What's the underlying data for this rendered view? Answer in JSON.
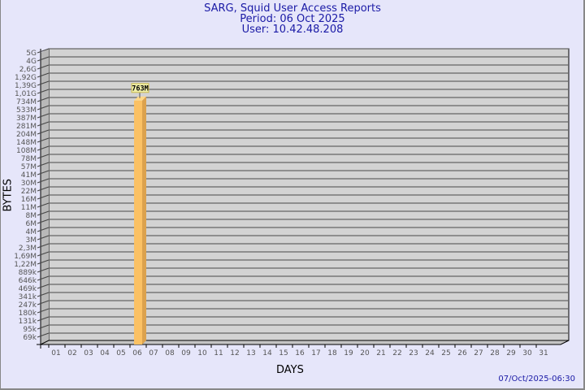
{
  "header": {
    "title": "SARG, Squid User Access Reports",
    "period": "Period: 06 Oct 2025",
    "user": "User: 10.42.48.208"
  },
  "footer": {
    "timestamp": "07/Oct/2025-06:30"
  },
  "chart_data": {
    "type": "bar",
    "xlabel": "DAYS",
    "ylabel": "BYTES",
    "yscale": "log",
    "grid": true,
    "categories": [
      "01",
      "02",
      "03",
      "04",
      "05",
      "06",
      "07",
      "08",
      "09",
      "10",
      "11",
      "12",
      "13",
      "14",
      "15",
      "16",
      "17",
      "18",
      "19",
      "20",
      "21",
      "22",
      "23",
      "24",
      "25",
      "26",
      "27",
      "28",
      "29",
      "30",
      "31"
    ],
    "values": [
      null,
      null,
      null,
      null,
      null,
      "763M",
      null,
      null,
      null,
      null,
      null,
      null,
      null,
      null,
      null,
      null,
      null,
      null,
      null,
      null,
      null,
      null,
      null,
      null,
      null,
      null,
      null,
      null,
      null,
      null,
      null
    ],
    "data_labels": {
      "06": "763M"
    },
    "ytick_labels": [
      "5G",
      "4G",
      "2,6G",
      "1,92G",
      "1,39G",
      "1,01G",
      "734M",
      "533M",
      "387M",
      "281M",
      "204M",
      "148M",
      "108M",
      "78M",
      "57M",
      "41M",
      "30M",
      "22M",
      "16M",
      "11M",
      "8M",
      "6M",
      "4M",
      "3M",
      "2,3M",
      "1,69M",
      "1,22M",
      "889k",
      "646k",
      "469k",
      "341k",
      "247k",
      "180k",
      "131k",
      "95k",
      "69k"
    ],
    "colors": {
      "bar": "#fbc164",
      "bar_side": "#dca24e",
      "bar_top": "#ffd888",
      "plot_bg": "#d3d3d3",
      "label_bg": "#f0f0a8"
    }
  }
}
